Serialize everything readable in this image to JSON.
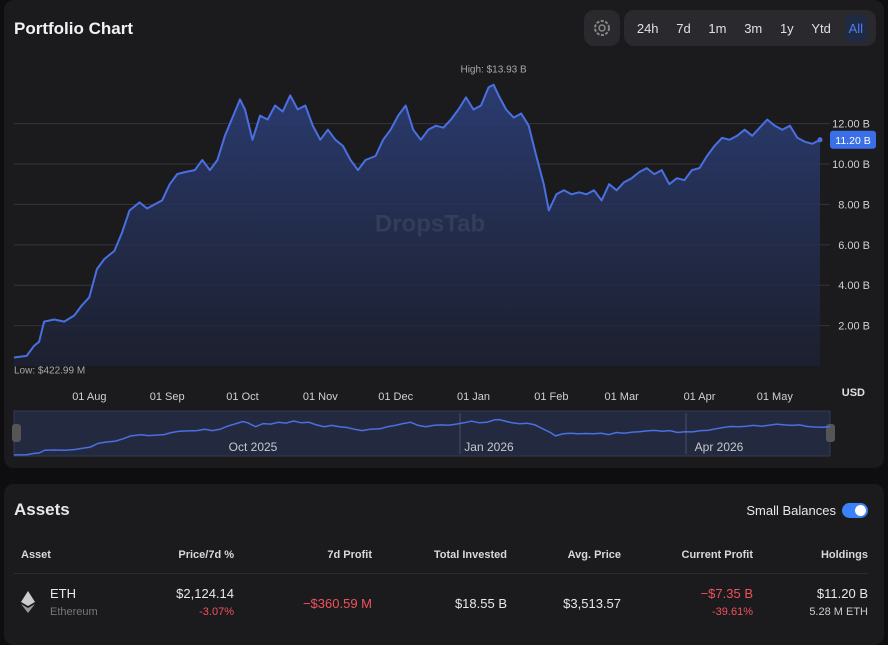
{
  "header": {
    "title": "Portfolio Chart",
    "ranges": [
      "24h",
      "7d",
      "1m",
      "3m",
      "1y",
      "Ytd",
      "All"
    ],
    "active_range": "All"
  },
  "chart_data": {
    "type": "area",
    "color": "#4a6fe0",
    "watermark": "DropsTab",
    "currency": "USD",
    "x": [
      0,
      5,
      8,
      10,
      12,
      16,
      20,
      24,
      27,
      30,
      33,
      36,
      40,
      43,
      46,
      50,
      53,
      56,
      59,
      62,
      65,
      68,
      72,
      75,
      78,
      81,
      84,
      88,
      90,
      92,
      95,
      98,
      101,
      104,
      107,
      110,
      113,
      116,
      119,
      122,
      125,
      128,
      131,
      134,
      137,
      140,
      144,
      147,
      150,
      153,
      156,
      159,
      162,
      165,
      168,
      171,
      174,
      177,
      180,
      183,
      186,
      189,
      191,
      193,
      196,
      199,
      202,
      205,
      208,
      211,
      213,
      216,
      219,
      222,
      225,
      228,
      231,
      234,
      237,
      240,
      243,
      246,
      249,
      252,
      255,
      258,
      261,
      264,
      267,
      270,
      273,
      276,
      279,
      282,
      285,
      288,
      291,
      294,
      297,
      300,
      303,
      306,
      309,
      312,
      315,
      318,
      321
    ],
    "values": [
      0.42299,
      0.5,
      1.0,
      1.2,
      2.2,
      2.3,
      2.2,
      2.5,
      3.0,
      3.4,
      4.8,
      5.3,
      5.7,
      6.6,
      7.7,
      8.1,
      7.8,
      8.0,
      8.2,
      9.0,
      9.5,
      9.6,
      9.7,
      10.2,
      9.7,
      10.2,
      11.4,
      12.6,
      13.2,
      12.7,
      11.2,
      12.4,
      12.2,
      12.9,
      12.6,
      13.4,
      12.7,
      12.9,
      11.9,
      11.2,
      11.7,
      11.2,
      10.9,
      10.2,
      9.7,
      10.2,
      10.4,
      11.2,
      11.7,
      12.4,
      12.9,
      11.7,
      11.2,
      11.7,
      11.9,
      11.8,
      12.2,
      12.7,
      13.3,
      12.7,
      12.9,
      13.8,
      13.93,
      13.4,
      12.7,
      12.3,
      12.5,
      11.9,
      10.4,
      9.0,
      7.7,
      8.5,
      8.7,
      8.5,
      8.6,
      8.5,
      8.7,
      8.2,
      9.0,
      8.7,
      9.1,
      9.3,
      9.6,
      9.8,
      9.5,
      9.7,
      9.0,
      9.3,
      9.2,
      9.7,
      9.8,
      10.4,
      10.9,
      11.3,
      11.2,
      11.4,
      11.7,
      11.4,
      11.8,
      12.2,
      11.9,
      11.7,
      11.9,
      11.3,
      11.1,
      11.0,
      11.2
    ],
    "xlim": [
      0,
      321
    ],
    "xticks": [
      {
        "value": 30,
        "label": "01 Aug"
      },
      {
        "value": 61,
        "label": "01 Sep"
      },
      {
        "value": 91,
        "label": "01 Oct"
      },
      {
        "value": 122,
        "label": "01 Nov"
      },
      {
        "value": 152,
        "label": "01 Dec"
      },
      {
        "value": 183,
        "label": "01 Jan"
      },
      {
        "value": 214,
        "label": "01 Feb"
      },
      {
        "value": 242,
        "label": "01 Mar"
      },
      {
        "value": 273,
        "label": "01 Apr"
      },
      {
        "value": 303,
        "label": "01 May"
      }
    ],
    "ylim": [
      0,
      15.3
    ],
    "yticks": [
      {
        "value": 2,
        "label": "2.00 B"
      },
      {
        "value": 4,
        "label": "4.00 B"
      },
      {
        "value": 6,
        "label": "6.00 B"
      },
      {
        "value": 8,
        "label": "8.00 B"
      },
      {
        "value": 10,
        "label": "10.00 B"
      },
      {
        "value": 12,
        "label": "12.00 B"
      }
    ],
    "grid": true,
    "annotations": [
      {
        "text": "High: $13.93 B",
        "x": 191,
        "y": 13.93
      },
      {
        "text": "Low: $422.99 M",
        "x": 0,
        "y": 0.42299
      },
      {
        "text": "11.20 B",
        "x": 321,
        "y": 11.2
      }
    ],
    "navigator_labels": [
      "Oct 2025",
      "Jan 2026",
      "Apr 2026"
    ]
  },
  "assets": {
    "title": "Assets",
    "toggle_label": "Small Balances",
    "columns": [
      "Asset",
      "Price/7d %",
      "7d Profit",
      "Total Invested",
      "Avg. Price",
      "Current Profit",
      "Holdings"
    ],
    "rows": [
      {
        "asset": "ETH",
        "asset_name": "Ethereum",
        "price": "$2,124.14",
        "price_change": "-3.07%",
        "profit_7d": "−$360.59 M",
        "total_invested": "$18.55 B",
        "avg_price": "$3,513.57",
        "current_profit": "−$7.35 B",
        "current_profit_pct": "-39.61%",
        "holdings": "$11.20 B",
        "holdings_amount": "5.28 M ETH"
      }
    ]
  }
}
